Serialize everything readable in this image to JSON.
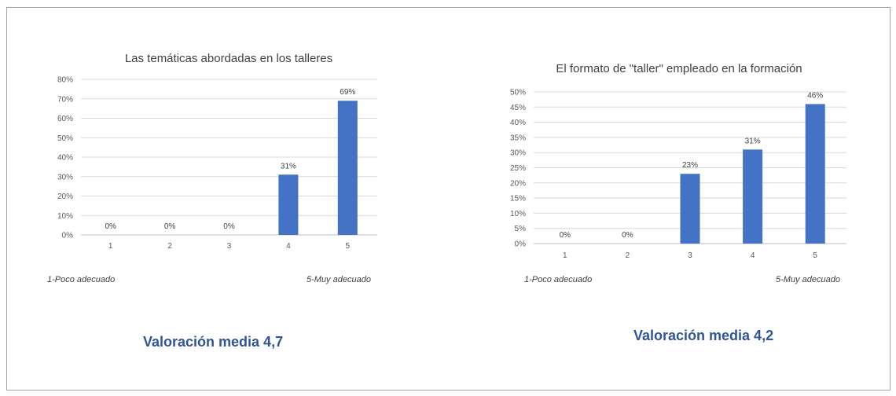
{
  "chart_data": [
    {
      "type": "bar",
      "title": "Las temáticas abordadas en los talleres",
      "categories": [
        "1",
        "2",
        "3",
        "4",
        "5"
      ],
      "values": [
        0,
        0,
        0,
        31,
        69
      ],
      "value_labels": [
        "0%",
        "0%",
        "0%",
        "31%",
        "69%"
      ],
      "ylim": [
        0,
        80
      ],
      "y_ticks": [
        0,
        10,
        20,
        30,
        40,
        50,
        60,
        70,
        80
      ],
      "y_tick_labels": [
        "0%",
        "10%",
        "20%",
        "30%",
        "40%",
        "50%",
        "60%",
        "70%",
        "80%"
      ],
      "grid": true,
      "bar_color": "#4472c4"
    },
    {
      "type": "bar",
      "title": "El formato de \"taller\" empleado en la formación",
      "categories": [
        "1",
        "2",
        "3",
        "4",
        "5"
      ],
      "values": [
        0,
        0,
        23,
        31,
        46
      ],
      "value_labels": [
        "0%",
        "0%",
        "23%",
        "31%",
        "46%"
      ],
      "ylim": [
        0,
        50
      ],
      "y_ticks": [
        0,
        5,
        10,
        15,
        20,
        25,
        30,
        35,
        40,
        45,
        50
      ],
      "y_tick_labels": [
        "0%",
        "5%",
        "10%",
        "15%",
        "20%",
        "25%",
        "30%",
        "35%",
        "40%",
        "45%",
        "50%"
      ],
      "grid": true,
      "bar_color": "#4472c4"
    }
  ],
  "notes": {
    "left_low": "1-Poco adecuado",
    "left_high": "5-Muy adecuado",
    "right_low": "1-Poco adecuado",
    "right_high": "5-Muy adecuado"
  },
  "averages": {
    "left": "Valoración media 4,7",
    "right": "Valoración media 4,2"
  },
  "colors": {
    "accent": "#2f5597",
    "bar": "#4472c4",
    "grid": "#d9d9d9"
  }
}
